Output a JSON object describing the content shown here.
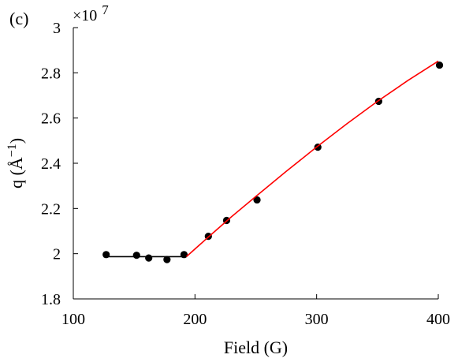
{
  "chart_data": {
    "type": "scatter",
    "panel_label": "(c)",
    "xlabel": "Field (G)",
    "ylabel_parts": {
      "base": "q (",
      "unit": "Å",
      "exp": "−1",
      "close": ")"
    },
    "y_multiplier": {
      "text": "×10",
      "exp": "7"
    },
    "xlim": [
      100,
      400
    ],
    "ylim": [
      1.8,
      3.0
    ],
    "x_ticks": [
      100,
      200,
      300,
      400
    ],
    "y_ticks": [
      1.8,
      2.0,
      2.2,
      2.4,
      2.6,
      2.8,
      3.0
    ],
    "x_tick_labels": [
      "100",
      "200",
      "300",
      "400"
    ],
    "y_tick_labels": [
      "1.8",
      "2",
      "2.2",
      "2.4",
      "2.6",
      "2.8",
      "3"
    ],
    "grid": false,
    "series": [
      {
        "kind": "points",
        "color": "#000000",
        "x": [
          127,
          152,
          162,
          177,
          191,
          211,
          226,
          251,
          301,
          351,
          401
        ],
        "y": [
          1.996,
          1.993,
          1.981,
          1.974,
          1.996,
          2.077,
          2.147,
          2.238,
          2.471,
          2.674,
          2.834
        ]
      },
      {
        "kind": "line",
        "color": "#000000",
        "x": [
          127,
          193
        ],
        "y": [
          1.987,
          1.987
        ]
      },
      {
        "kind": "line",
        "color": "#ff0000",
        "x": [
          193,
          210,
          230,
          250,
          275,
          300,
          325,
          350,
          375,
          400
        ],
        "y": [
          1.987,
          2.069,
          2.163,
          2.253,
          2.364,
          2.472,
          2.575,
          2.674,
          2.766,
          2.852
        ]
      }
    ]
  }
}
